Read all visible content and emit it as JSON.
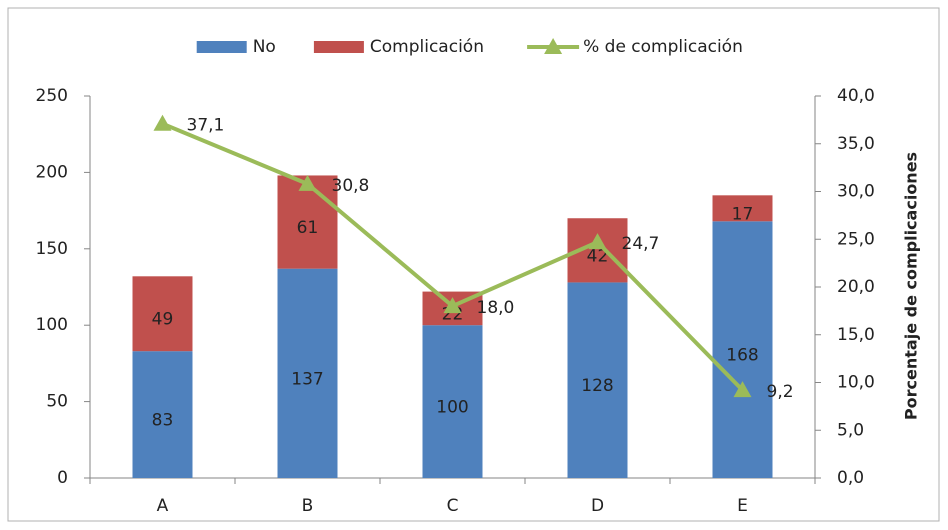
{
  "chart_data": {
    "type": "bar",
    "stacked": true,
    "categories": [
      "A",
      "B",
      "C",
      "D",
      "E"
    ],
    "series": [
      {
        "name": "No",
        "color": "#4f81bd",
        "values": [
          83,
          137,
          100,
          128,
          168
        ]
      },
      {
        "name": "Complicación",
        "color": "#c0504d",
        "values": [
          49,
          61,
          22,
          42,
          17
        ]
      },
      {
        "name": "% de complicación",
        "type": "line",
        "axis": "y2",
        "color": "#9bbb59",
        "marker": "triangle",
        "values": [
          37.1,
          30.8,
          18.0,
          24.7,
          9.2
        ],
        "value_labels": [
          "37,1",
          "30,8",
          "18,0",
          "24,7",
          "9,2"
        ]
      }
    ],
    "ylim": [
      0,
      250
    ],
    "yticks": [
      0,
      50,
      100,
      150,
      200,
      250
    ],
    "y2lim": [
      0,
      40
    ],
    "y2ticks": [
      {
        "value": 0,
        "label": "0,0"
      },
      {
        "value": 5,
        "label": "5,0"
      },
      {
        "value": 10,
        "label": "10,0"
      },
      {
        "value": 15,
        "label": "15,0"
      },
      {
        "value": 20,
        "label": "20,0"
      },
      {
        "value": 25,
        "label": "25,0"
      },
      {
        "value": 30,
        "label": "30,0"
      },
      {
        "value": 35,
        "label": "35,0"
      },
      {
        "value": 40,
        "label": "40,0"
      }
    ],
    "y2label": "Porcentaje de complicaciones",
    "legend": "top",
    "grid": false
  }
}
